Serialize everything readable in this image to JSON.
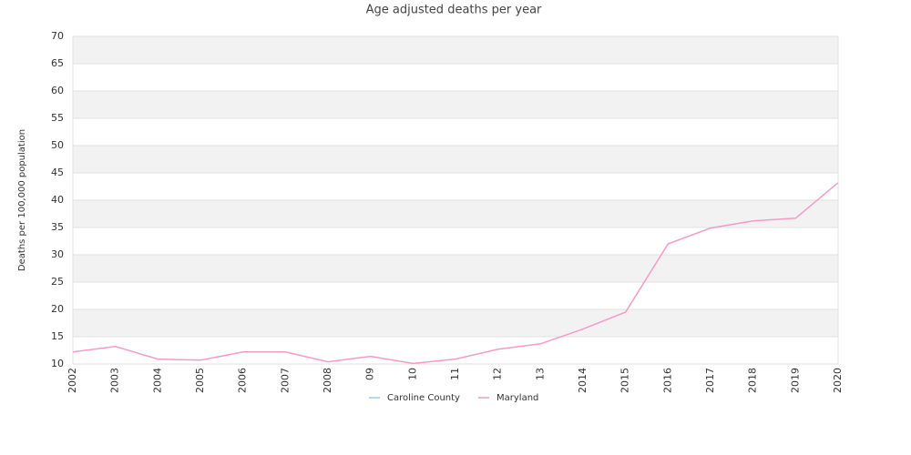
{
  "chart_data": {
    "type": "line",
    "title": "Age adjusted deaths per year",
    "y_label": "Deaths per 100,000 population",
    "categories": [
      "2002",
      "2003",
      "2004",
      "2005",
      "2006",
      "2007",
      "2008",
      "09",
      "10",
      "11",
      "12",
      "13",
      "2014",
      "2015",
      "2016",
      "2017",
      "2018",
      "2019",
      "2020"
    ],
    "series": [
      {
        "name": "Caroline County",
        "color": "#9ecae1",
        "values": [
          null,
          null,
          null,
          null,
          null,
          null,
          null,
          null,
          null,
          null,
          null,
          null,
          null,
          null,
          null,
          null,
          null,
          null,
          null
        ]
      },
      {
        "name": "Maryland",
        "color": "#f49ac7",
        "values": [
          12.2,
          13.2,
          10.9,
          10.7,
          12.2,
          12.2,
          10.4,
          11.4,
          10.1,
          10.9,
          12.7,
          13.7,
          16.4,
          19.5,
          32.0,
          34.9,
          36.2,
          36.7,
          43.2
        ]
      }
    ],
    "ylim": [
      10,
      70
    ],
    "yticks": [
      10,
      15,
      20,
      25,
      30,
      35,
      40,
      45,
      50,
      55,
      60,
      65,
      70
    ],
    "grid": true
  }
}
